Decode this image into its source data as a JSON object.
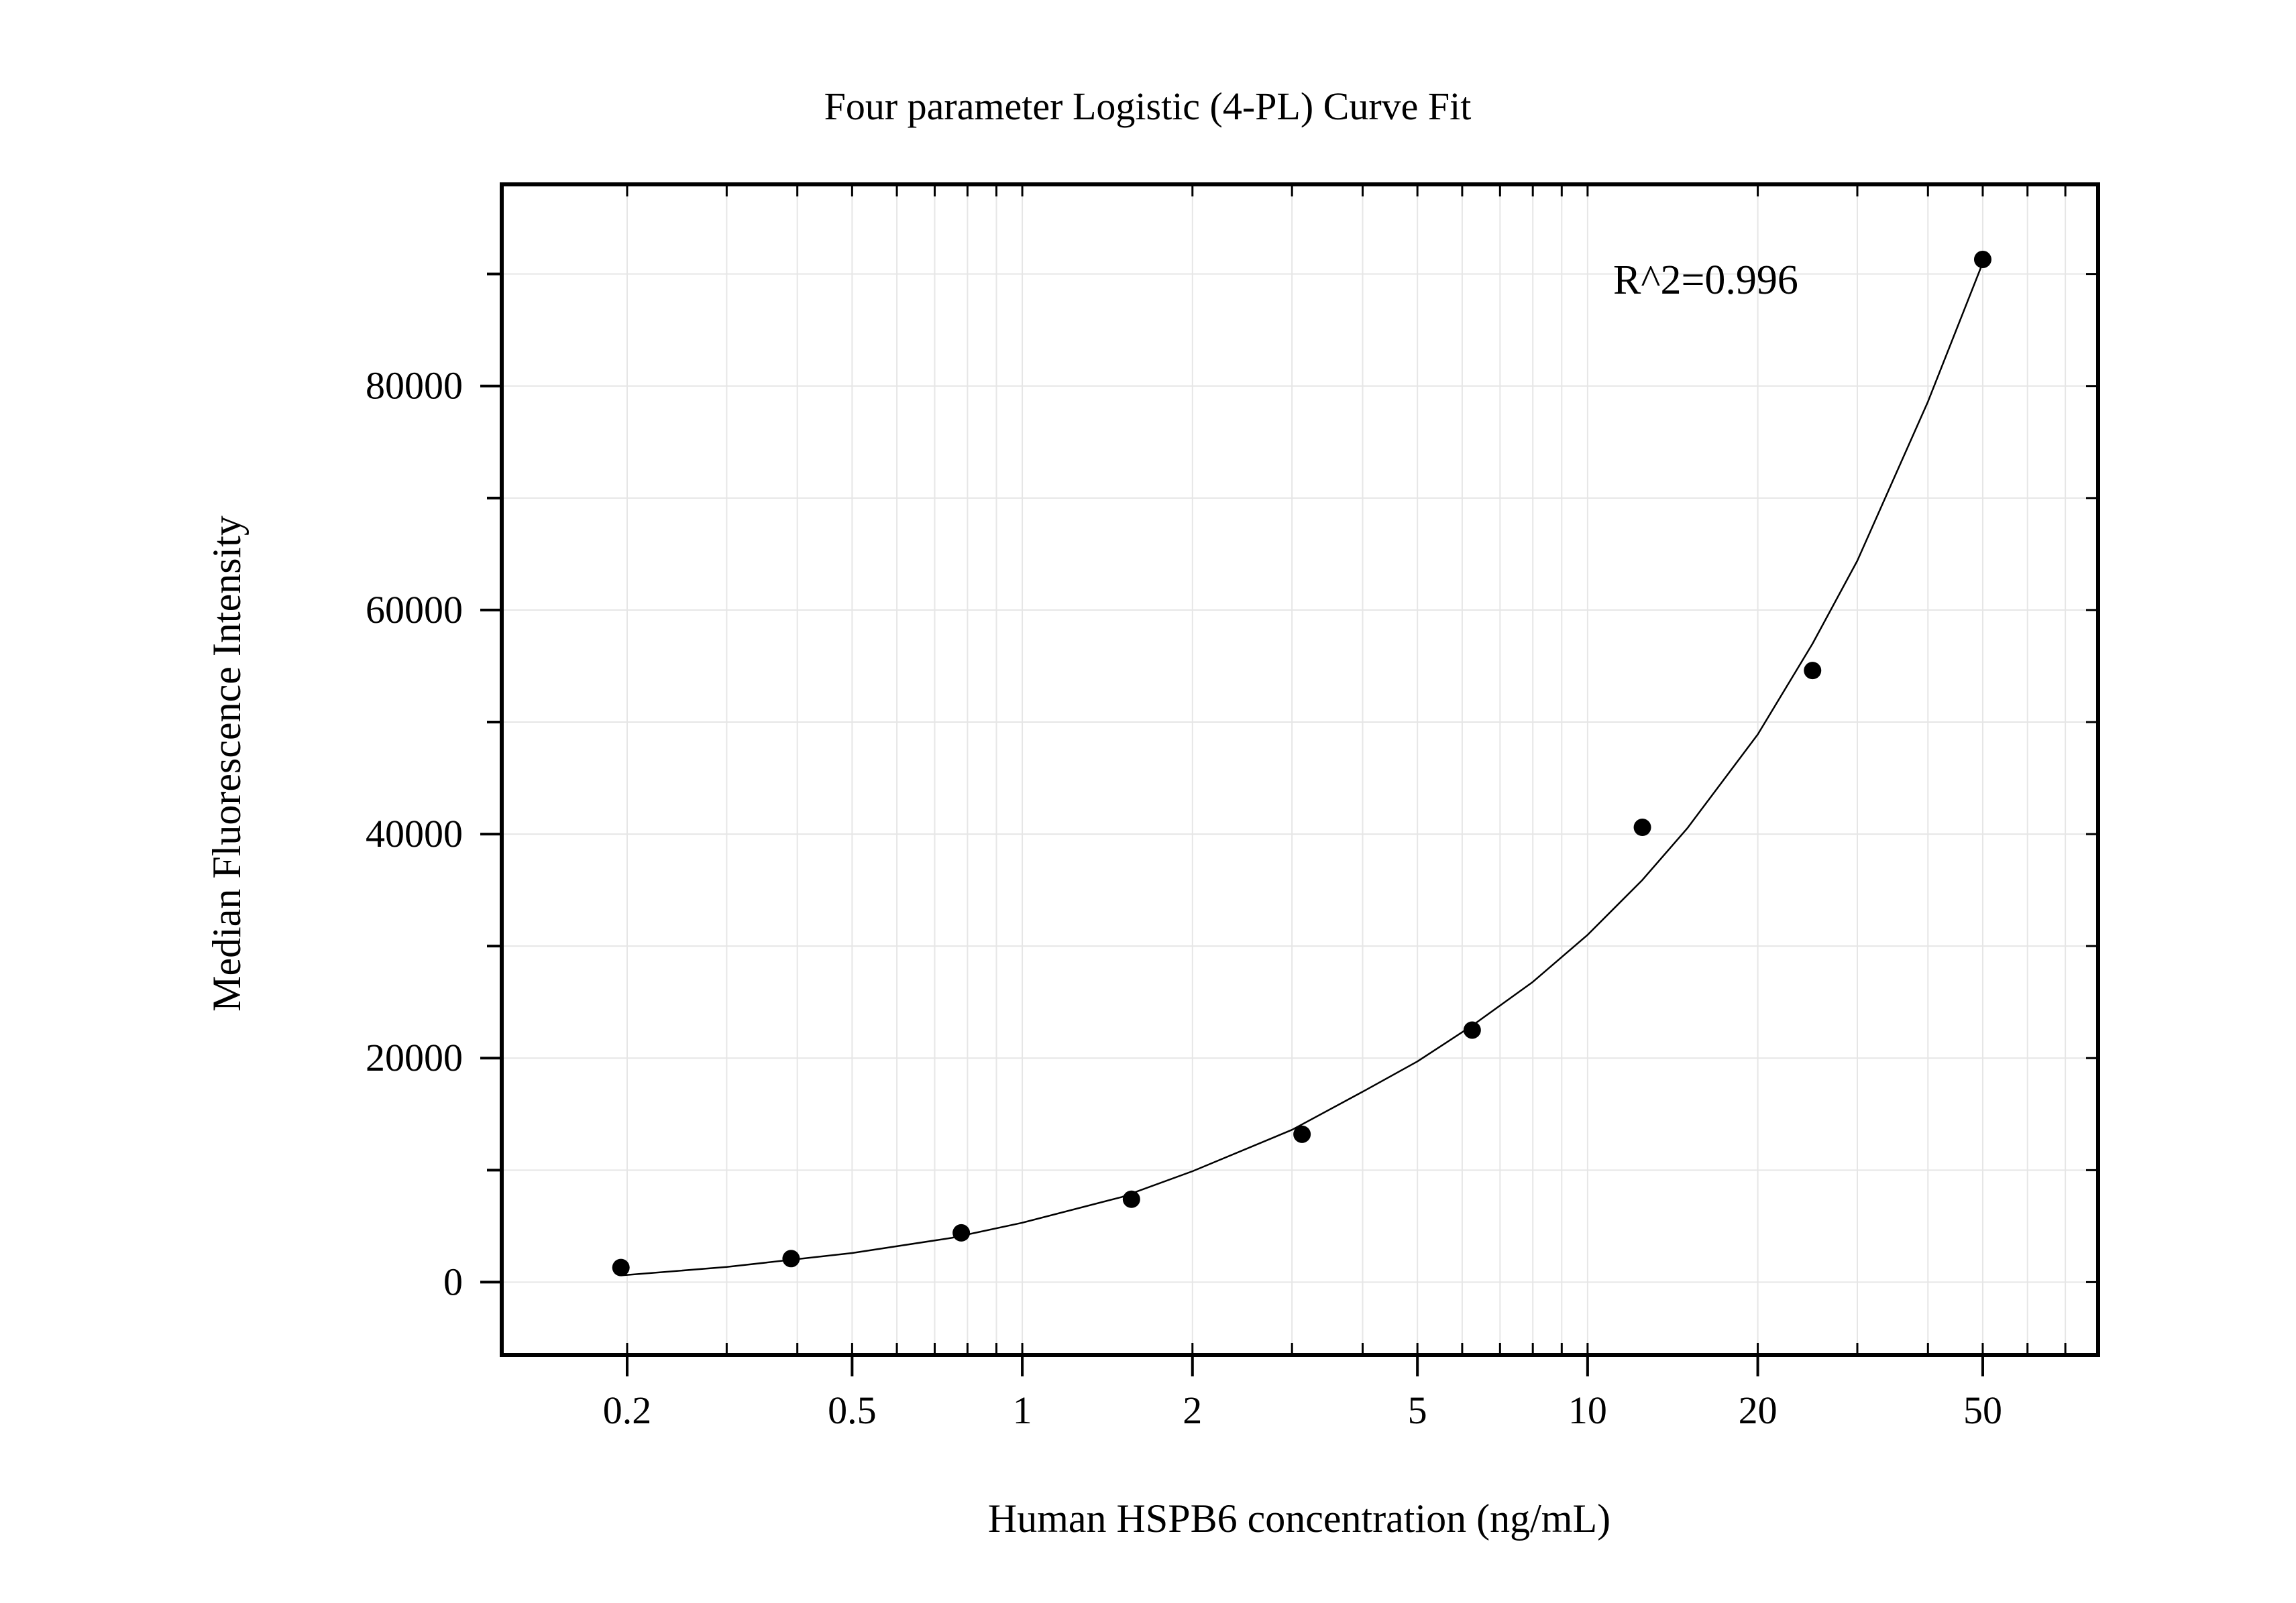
{
  "chart_data": {
    "type": "scatter",
    "title": "Four parameter Logistic (4-PL) Curve Fit",
    "xlabel": "Human HSPB6 concentration (ng/mL)",
    "ylabel": "Median Fluorescence Intensity",
    "x_scale": "log",
    "xlim": [
      0.12,
      80
    ],
    "ylim": [
      -6500,
      98000
    ],
    "x_ticks": [
      0.2,
      0.5,
      1,
      2,
      5,
      10,
      20,
      50
    ],
    "x_tick_labels": [
      "0.2",
      "0.5",
      "1",
      "2",
      "5",
      "10",
      "20",
      "50"
    ],
    "y_ticks": [
      0,
      20000,
      40000,
      60000,
      80000
    ],
    "y_tick_labels": [
      "0",
      "20000",
      "40000",
      "60000",
      "80000"
    ],
    "grid": true,
    "annotation": "R^2=0.996",
    "series": [
      {
        "kind": "points",
        "x": [
          0.195,
          0.39,
          0.78,
          1.56,
          3.125,
          6.25,
          12.5,
          25,
          50
        ],
        "y": [
          1300,
          2100,
          4400,
          7400,
          13200,
          22500,
          40600,
          54600,
          91300
        ]
      },
      {
        "kind": "fit-curve",
        "x": [
          0.195,
          0.3,
          0.5,
          0.75,
          1,
          1.5,
          2,
          3,
          4,
          5,
          6.25,
          8,
          10,
          12.5,
          15,
          20,
          25,
          30,
          40,
          50
        ],
        "y": [
          600,
          1350,
          2600,
          3950,
          5300,
          7600,
          9900,
          13600,
          17000,
          19700,
          22900,
          26800,
          31000,
          35900,
          40500,
          48900,
          57000,
          64400,
          78600,
          91000
        ]
      }
    ],
    "colors": {
      "points": "#000000",
      "curve": "#000000",
      "grid": "#e6e6e6",
      "frame": "#000000"
    }
  }
}
